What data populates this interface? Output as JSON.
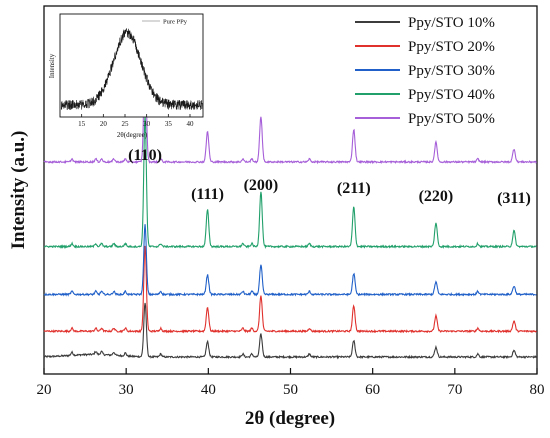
{
  "chart_data": {
    "type": "line",
    "xlabel": "2θ (degree)",
    "ylabel": "Intensity (a.u.)",
    "xlim": [
      20,
      80
    ],
    "x_ticks": [
      20,
      30,
      40,
      50,
      60,
      70,
      80
    ],
    "y_ticks_shown": false,
    "legend_position": "top-right",
    "series": [
      {
        "name": "Ppy/STO 10%",
        "color": "#3c3c3c",
        "baseline": 0.03,
        "scale": 0.35
      },
      {
        "name": "Ppy/STO 20%",
        "color": "#e0312d",
        "baseline": 0.1,
        "scale": 0.55
      },
      {
        "name": "Ppy/STO 30%",
        "color": "#2060c8",
        "baseline": 0.2,
        "scale": 0.45
      },
      {
        "name": "Ppy/STO 40%",
        "color": "#22a06b",
        "baseline": 0.33,
        "scale": 0.85
      },
      {
        "name": "Ppy/STO 50%",
        "color": "#a65fd8",
        "baseline": 0.56,
        "scale": 0.7
      }
    ],
    "peaks": [
      {
        "x": 32.3,
        "label": "(110)",
        "rel": 1.0
      },
      {
        "x": 39.9,
        "label": "(111)",
        "rel": 0.28
      },
      {
        "x": 46.4,
        "label": "(200)",
        "rel": 0.42
      },
      {
        "x": 57.7,
        "label": "(211)",
        "rel": 0.3
      },
      {
        "x": 67.7,
        "label": "(220)",
        "rel": 0.18
      },
      {
        "x": 77.2,
        "label": "(311)",
        "rel": 0.12
      }
    ],
    "inset": {
      "legend": "Pure PPy",
      "xlabel": "2θ(degree)",
      "ylabel": "Intensity",
      "xlim": [
        10,
        43
      ],
      "x_ticks": [
        15,
        20,
        25,
        30,
        35,
        40
      ],
      "peak_center": 25.5,
      "peak_width": 4.5
    }
  }
}
